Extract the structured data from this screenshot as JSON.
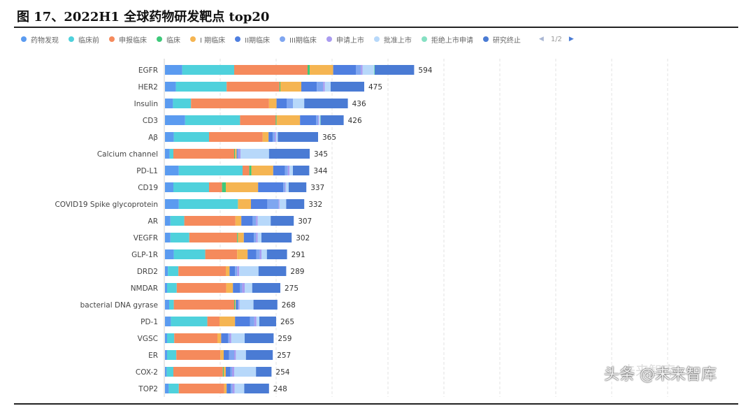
{
  "figure": {
    "title": "图 17、2022H1 全球药物研发靶点 top20"
  },
  "legend": {
    "items": [
      {
        "label": "药物发现",
        "color": "#5b9bf0"
      },
      {
        "label": "临床前",
        "color": "#4fd1dc"
      },
      {
        "label": "申报临床",
        "color": "#f58a5c"
      },
      {
        "label": "临床",
        "color": "#3ec97a"
      },
      {
        "label": "I 期临床",
        "color": "#f5b552"
      },
      {
        "label": "II期临床",
        "color": "#4f7fe0"
      },
      {
        "label": "III期临床",
        "color": "#7fa6f0"
      },
      {
        "label": "申请上市",
        "color": "#a99bf0"
      },
      {
        "label": "批准上市",
        "color": "#b7d8fa"
      },
      {
        "label": "拒绝上市申请",
        "color": "#86e0c3"
      },
      {
        "label": "研究终止",
        "color": "#4a7bd4"
      }
    ],
    "page": "1/2"
  },
  "chart_data": {
    "type": "bar",
    "orientation": "horizontal",
    "stacked": true,
    "grid": true,
    "legend_position": "top",
    "categories": [
      "EGFR",
      "HER2",
      "Insulin",
      "CD3",
      "Aβ",
      "Calcium channel",
      "PD-L1",
      "CD19",
      "COVID19 Spike glycoprotein",
      "AR",
      "VEGFR",
      "GLP-1R",
      "DRD2",
      "NMDAR",
      "bacterial DNA gyrase",
      "PD-1",
      "VGSC",
      "ER",
      "COX-2",
      "TOP2"
    ],
    "totals": [
      594,
      475,
      436,
      426,
      365,
      345,
      344,
      337,
      332,
      307,
      302,
      291,
      289,
      275,
      268,
      265,
      259,
      257,
      254,
      248
    ],
    "series": [
      {
        "name": "药物发现",
        "color": "#5b9bf0",
        "values": [
          41,
          26,
          19,
          48,
          21,
          11,
          33,
          20,
          33,
          13,
          13,
          21,
          7,
          5,
          10,
          14,
          5,
          5,
          4,
          9
        ]
      },
      {
        "name": "临床前",
        "color": "#4fd1dc",
        "values": [
          124,
          121,
          43,
          131,
          84,
          9,
          152,
          85,
          141,
          33,
          45,
          75,
          25,
          23,
          11,
          87,
          17,
          22,
          16,
          24
        ]
      },
      {
        "name": "申报临床",
        "color": "#f58a5c",
        "values": [
          175,
          126,
          186,
          85,
          128,
          145,
          16,
          31,
          0,
          122,
          114,
          76,
          113,
          118,
          144,
          29,
          103,
          105,
          118,
          108
        ]
      },
      {
        "name": "临床",
        "color": "#3ec97a",
        "values": [
          5,
          2,
          0,
          2,
          0,
          2,
          5,
          9,
          0,
          0,
          2,
          0,
          0,
          0,
          2,
          0,
          0,
          0,
          2,
          0
        ]
      },
      {
        "name": "I 期临床",
        "color": "#f5b552",
        "values": [
          56,
          50,
          18,
          56,
          14,
          4,
          52,
          77,
          31,
          14,
          14,
          25,
          9,
          16,
          2,
          37,
          9,
          8,
          5,
          6
        ]
      },
      {
        "name": "II期临床",
        "color": "#4f7fe0",
        "values": [
          54,
          37,
          24,
          38,
          10,
          2,
          28,
          60,
          39,
          27,
          24,
          21,
          13,
          17,
          5,
          36,
          16,
          13,
          11,
          10
        ]
      },
      {
        "name": "III期临床",
        "color": "#7fa6f0",
        "values": [
          12,
          15,
          15,
          5,
          5,
          2,
          7,
          4,
          27,
          8,
          5,
          8,
          5,
          5,
          2,
          10,
          4,
          12,
          4,
          4
        ]
      },
      {
        "name": "申请上市",
        "color": "#a99bf0",
        "values": [
          4,
          4,
          0,
          2,
          3,
          5,
          4,
          2,
          2,
          4,
          4,
          4,
          5,
          6,
          2,
          5,
          4,
          4,
          5,
          5
        ]
      },
      {
        "name": "批准上市",
        "color": "#b7d8fa",
        "values": [
          27,
          14,
          27,
          3,
          4,
          68,
          8,
          7,
          16,
          31,
          9,
          13,
          46,
          18,
          33,
          7,
          32,
          24,
          52,
          23
        ]
      },
      {
        "name": "拒绝上市申请",
        "color": "#86e0c3",
        "values": [
          2,
          0,
          0,
          1,
          0,
          0,
          0,
          0,
          0,
          0,
          0,
          0,
          0,
          0,
          0,
          0,
          0,
          0,
          0,
          0
        ]
      },
      {
        "name": "研究终止",
        "color": "#4a7bd4",
        "values": [
          94,
          80,
          104,
          55,
          96,
          97,
          39,
          42,
          43,
          55,
          72,
          48,
          66,
          67,
          57,
          40,
          69,
          64,
          37,
          59
        ]
      }
    ]
  },
  "watermark": {
    "text": "头条 @未来智库",
    "faint_text": "未来智库"
  }
}
